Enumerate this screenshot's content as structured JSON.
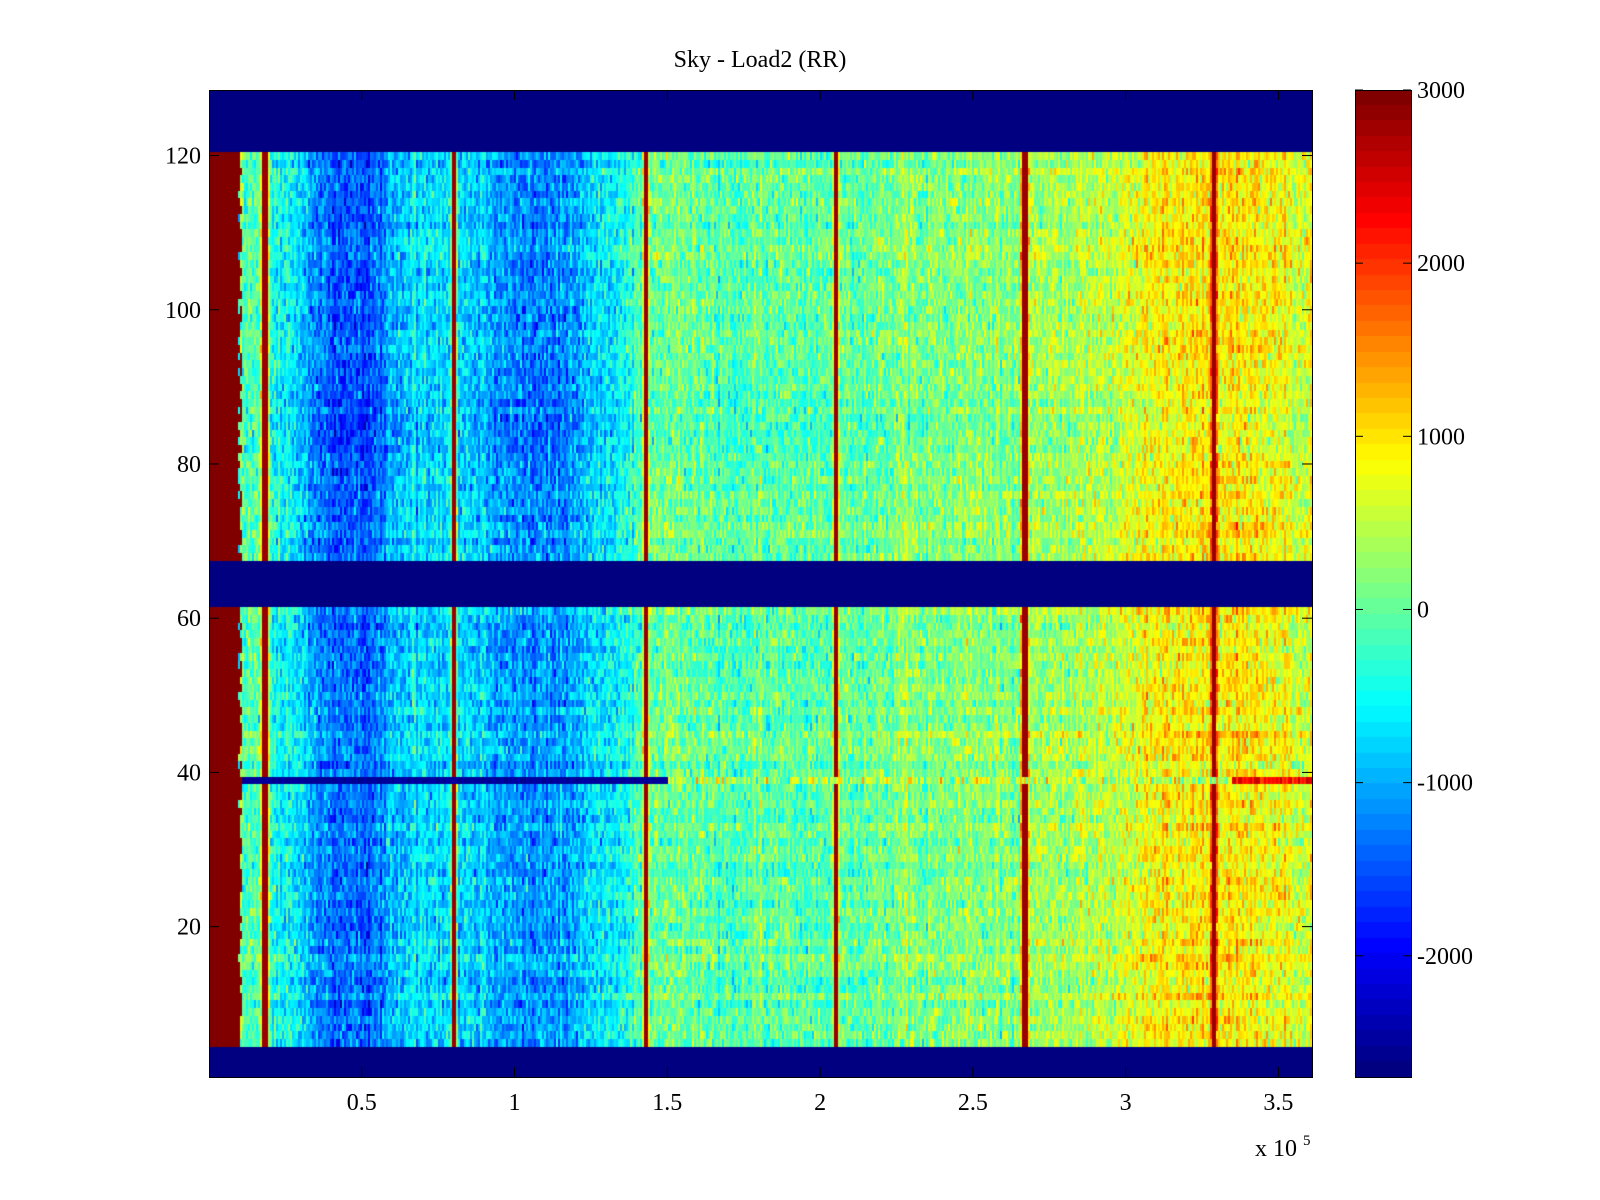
{
  "chart_data": {
    "type": "heatmap",
    "title": "Sky - Load2 (RR)",
    "xlabel": "",
    "ylabel": "",
    "x_multiplier_label": "x 10",
    "x_multiplier_exponent": "5",
    "xlim": [
      0,
      3.61
    ],
    "ylim": [
      1,
      128
    ],
    "x_ticks": [
      0.5,
      1,
      1.5,
      2,
      2.5,
      3,
      3.5
    ],
    "x_tick_labels": [
      "0.5",
      "1",
      "1.5",
      "2",
      "2.5",
      "3",
      "3.5"
    ],
    "y_ticks": [
      20,
      40,
      60,
      80,
      100,
      120
    ],
    "y_tick_labels": [
      "20",
      "40",
      "60",
      "80",
      "100",
      "120"
    ],
    "colormap": "jet",
    "clim": [
      -2700,
      3000
    ],
    "colorbar_ticks": [
      3000,
      2000,
      1000,
      0,
      -1000,
      -2000
    ],
    "colorbar_tick_labels": [
      "3000",
      "2000",
      "1000",
      "0",
      "-1000",
      "-2000"
    ],
    "masked_row_ranges": [
      [
        1,
        4
      ],
      [
        62,
        67
      ],
      [
        121,
        128
      ]
    ],
    "saturated_column_range_x": [
      0,
      0.1
    ],
    "vertical_spike_lines_x": [
      0.18,
      0.8,
      1.43,
      2.05,
      2.67,
      3.29
    ],
    "anomalous_row": {
      "y": 39,
      "low_until_x": 1.5,
      "high_from_x": 3.35
    },
    "low_value_regions_x": [
      [
        0.3,
        0.6
      ],
      [
        0.9,
        1.3
      ]
    ],
    "high_value_region_x": [
      3.0,
      3.61
    ],
    "grid": false
  }
}
